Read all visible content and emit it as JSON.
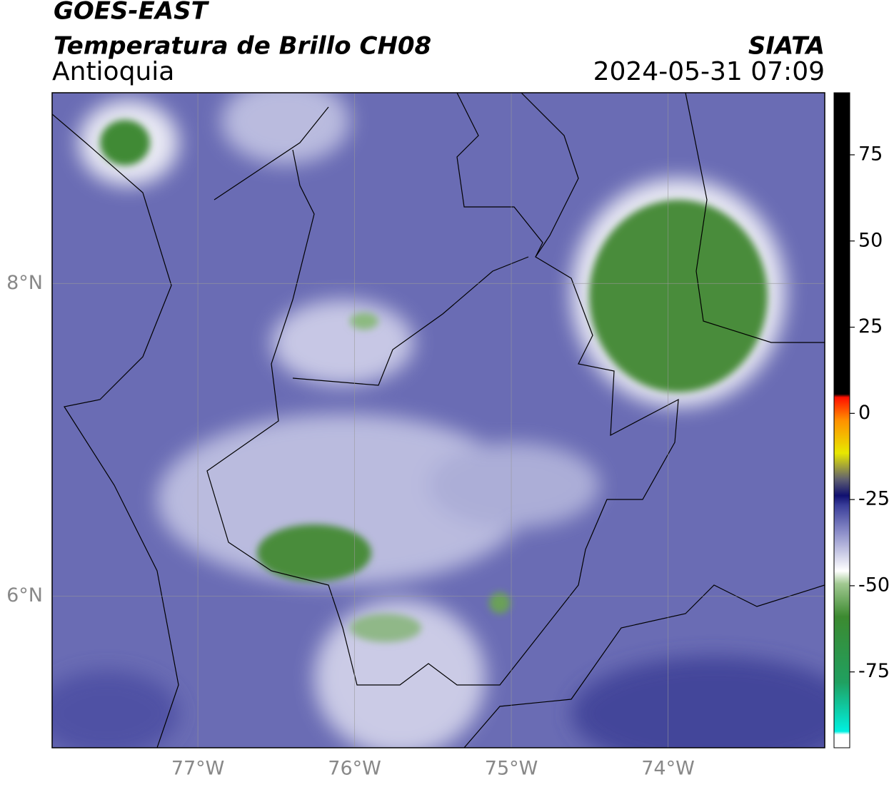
{
  "header": {
    "title": "GOES-EAST",
    "subtitle": "Temperatura de Brillo CH08",
    "region": "Antioquia",
    "source": "SIATA",
    "datetime": "2024-05-31 07:09"
  },
  "map": {
    "xlim": [
      -77.93,
      -73.0
    ],
    "ylim": [
      5.03,
      9.22
    ],
    "xticks": [
      {
        "value": -77,
        "label": "77°W"
      },
      {
        "value": -76,
        "label": "76°W"
      },
      {
        "value": -75,
        "label": "75°W"
      },
      {
        "value": -74,
        "label": "74°W"
      }
    ],
    "yticks": [
      {
        "value": 8,
        "label": "8°N"
      },
      {
        "value": 6,
        "label": "6°N"
      }
    ]
  },
  "colorbar": {
    "lim": [
      -97,
      93
    ],
    "ticks": [
      75,
      50,
      25,
      0,
      -25,
      -50,
      -75
    ]
  }
}
